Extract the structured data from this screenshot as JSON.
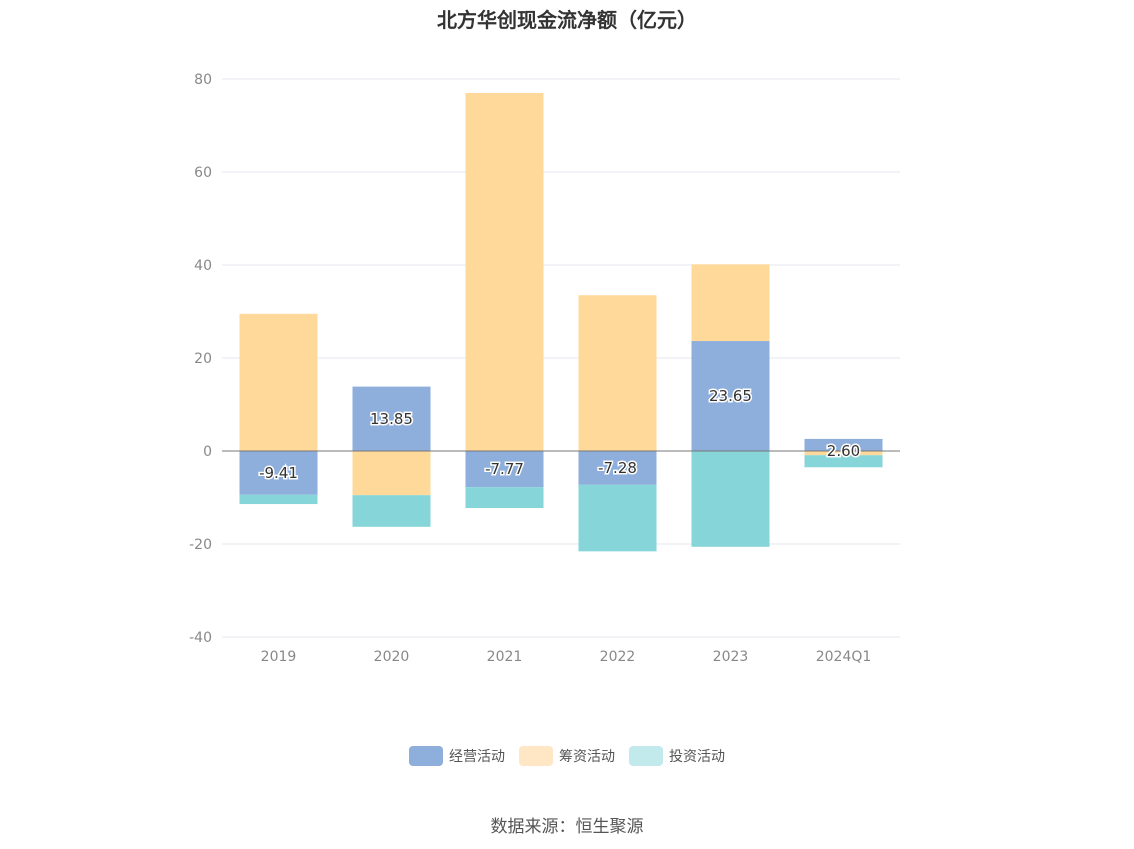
{
  "chart_data": {
    "type": "bar",
    "stacked": true,
    "title": "北方华创现金流净额（亿元）",
    "source": "数据来源：恒生聚源",
    "categories": [
      "2019",
      "2020",
      "2021",
      "2022",
      "2023",
      "2024Q1"
    ],
    "ylim": [
      -40,
      80
    ],
    "yticks": [
      80,
      60,
      40,
      20,
      0,
      -20,
      -40
    ],
    "grid": true,
    "legend_position": "bottom",
    "series": [
      {
        "name": "经营活动",
        "color": "#8EAEDB",
        "values": [
          -9.41,
          13.85,
          -7.77,
          -7.28,
          23.65,
          2.6
        ],
        "labels": [
          "-9.41",
          "13.85",
          "-7.77",
          "-7.28",
          "23.65",
          "2.60"
        ]
      },
      {
        "name": "筹资活动",
        "color": "#FFD99A",
        "values": [
          29.5,
          -9.5,
          77.0,
          33.5,
          16.5,
          -0.9
        ]
      },
      {
        "name": "投资活动",
        "color": "#86D5D8",
        "values": [
          -2.0,
          -6.8,
          -4.5,
          -14.3,
          -20.6,
          -2.6
        ]
      }
    ],
    "legend_colors": [
      "#8EAEDB",
      "#FFE6C4",
      "#C2EAEC"
    ]
  }
}
